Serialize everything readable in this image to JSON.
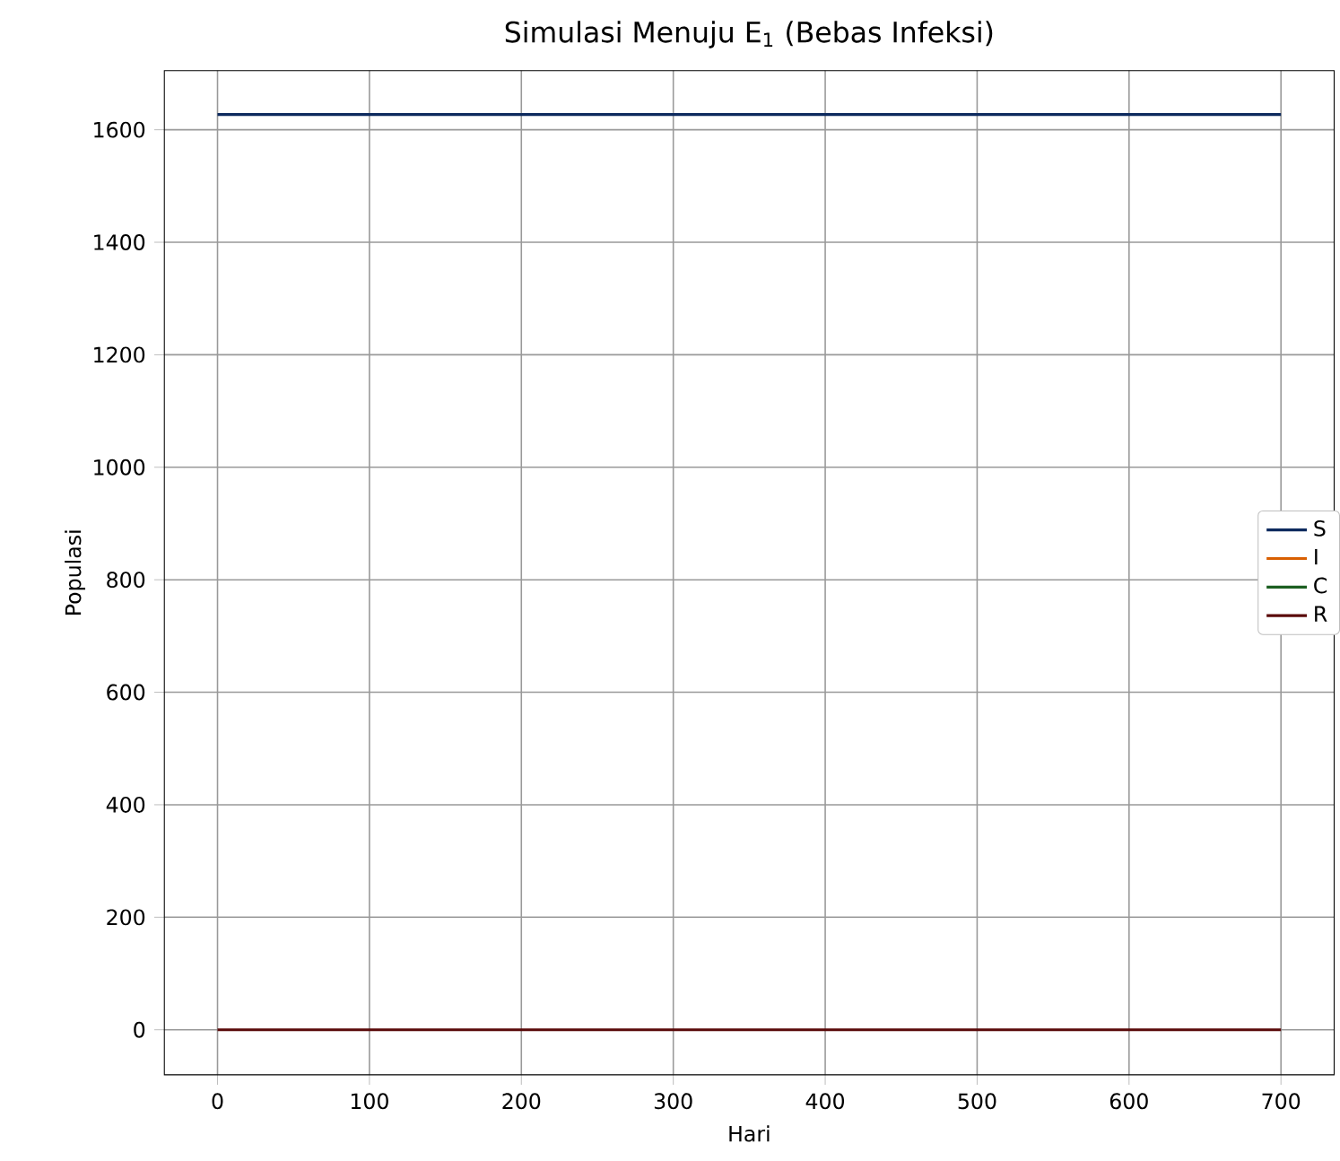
{
  "chart_data": {
    "type": "line",
    "title": "Simulasi Menuju E$_{1}$ (Bebas Infeksi)",
    "xlabel": "Hari",
    "ylabel": "Populasi",
    "x": [
      0,
      700
    ],
    "series": [
      {
        "name": "S",
        "color": "#0d2a5e",
        "values": [
          1627,
          1627
        ]
      },
      {
        "name": "I",
        "color": "#d95f02",
        "values": [
          null,
          null
        ]
      },
      {
        "name": "C",
        "color": "#1b5e20",
        "values": [
          null,
          null
        ]
      },
      {
        "name": "R",
        "color": "#5a0a0a",
        "values": [
          0,
          0
        ]
      }
    ],
    "xlim": [
      -35,
      735
    ],
    "ylim": [
      -80,
      1705
    ],
    "xticks": [
      0,
      100,
      200,
      300,
      400,
      500,
      600,
      700
    ],
    "yticks": [
      0,
      200,
      400,
      600,
      800,
      1000,
      1200,
      1400,
      1600
    ],
    "grid": true,
    "legend": "right",
    "marker": "none",
    "line_style": "solid"
  }
}
